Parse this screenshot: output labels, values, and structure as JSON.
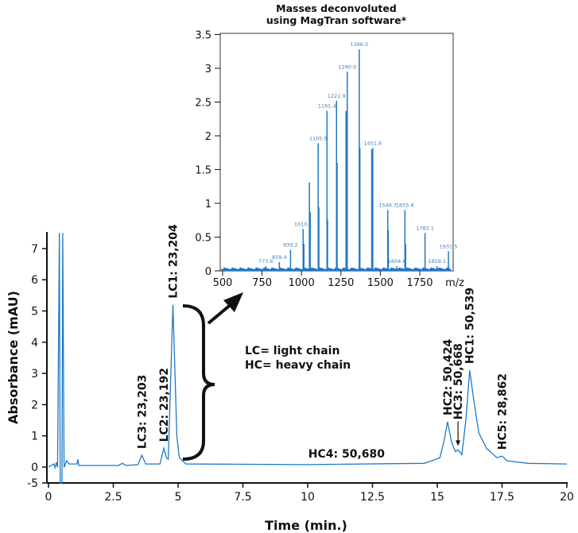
{
  "chart_data": [
    {
      "type": "line",
      "xlabel": "Time (min.)",
      "ylabel": "Absorbance (mAU)",
      "xlim": [
        0,
        20
      ],
      "ylim": [
        -5,
        7.5
      ],
      "x_ticks": [
        "0",
        "2.5",
        "5",
        "7.5",
        "10",
        "12.5",
        "15",
        "17.5",
        "20"
      ],
      "y_ticks": [
        "-5",
        "0",
        "1",
        "2",
        "3",
        "4",
        "5",
        "6",
        "7"
      ],
      "grid": false,
      "color": "#1f78c8",
      "series": [
        {
          "points": [
            [
              0,
              0
            ],
            [
              0.2,
              0.1
            ],
            [
              0.25,
              -0.2
            ],
            [
              0.3,
              0.15
            ],
            [
              0.35,
              -0.1
            ],
            [
              0.42,
              7.6
            ],
            [
              0.45,
              -5
            ],
            [
              0.52,
              -5
            ],
            [
              0.55,
              7.6
            ],
            [
              0.6,
              -0.1
            ],
            [
              0.7,
              0.2
            ],
            [
              0.8,
              0.1
            ],
            [
              1.1,
              0.1
            ],
            [
              1.13,
              0.25
            ],
            [
              1.17,
              0.05
            ],
            [
              2.7,
              0.05
            ],
            [
              2.85,
              0.12
            ],
            [
              3.0,
              0.05
            ],
            [
              3.45,
              0.08
            ],
            [
              3.6,
              0.38
            ],
            [
              3.75,
              0.1
            ],
            [
              4.3,
              0.1
            ],
            [
              4.45,
              0.6
            ],
            [
              4.55,
              0.3
            ],
            [
              4.62,
              0.25
            ],
            [
              4.72,
              3
            ],
            [
              4.8,
              5.2
            ],
            [
              4.88,
              3
            ],
            [
              4.95,
              1
            ],
            [
              5.05,
              0.3
            ],
            [
              5.3,
              0.1
            ],
            [
              10,
              0.08
            ],
            [
              14.5,
              0.12
            ],
            [
              14.95,
              0.25
            ],
            [
              15.1,
              0.3
            ],
            [
              15.25,
              0.8
            ],
            [
              15.4,
              1.45
            ],
            [
              15.55,
              0.8
            ],
            [
              15.7,
              0.5
            ],
            [
              15.8,
              0.55
            ],
            [
              15.95,
              0.4
            ],
            [
              16.1,
              1.5
            ],
            [
              16.25,
              3.1
            ],
            [
              16.4,
              2.2
            ],
            [
              16.6,
              1.1
            ],
            [
              16.9,
              0.6
            ],
            [
              17.3,
              0.3
            ],
            [
              17.5,
              0.35
            ],
            [
              17.7,
              0.2
            ],
            [
              18.5,
              0.12
            ],
            [
              20,
              0.1
            ]
          ]
        }
      ],
      "annotations": [
        {
          "text": "LC3: 23,203",
          "x": 3.6,
          "y": 0.38,
          "rotated": true
        },
        {
          "text": "LC2: 23,192",
          "x": 4.45,
          "y": 0.6,
          "rotated": true
        },
        {
          "text": "LC1: 23,204",
          "x": 4.8,
          "y": 5.2,
          "rotated": true
        },
        {
          "text": "HC4: 50,680",
          "x": 11.5,
          "y": 0.1,
          "rotated": false
        },
        {
          "text": "HC2: 50,424",
          "x": 15.4,
          "y": 1.45,
          "rotated": true
        },
        {
          "text": "HC3: 50,668",
          "x": 15.8,
          "y": 0.55,
          "rotated": true,
          "arrow": true
        },
        {
          "text": "HC1: 50,539",
          "x": 16.25,
          "y": 3.1,
          "rotated": true
        },
        {
          "text": "HC5: 28,862",
          "x": 17.5,
          "y": 0.35,
          "rotated": true
        }
      ],
      "legend_text": [
        "LC= light chain",
        "HC= heavy chain"
      ]
    },
    {
      "type": "bar",
      "title": [
        "Masses deconvoluted",
        "using MagTran software*"
      ],
      "xlabel": "m/z",
      "xlim": [
        500,
        1960
      ],
      "ylim": [
        0,
        3.5
      ],
      "x_ticks": [
        "500",
        "750",
        "1000",
        "1250",
        "1500",
        "1750"
      ],
      "y_ticks": [
        "0",
        "0.5",
        "1",
        "1.5",
        "2",
        "2.5",
        "3",
        "3.5"
      ],
      "color": "#1f78c8",
      "peaks": [
        {
          "mz": 773.6,
          "value": 0.07,
          "label": "773.6"
        },
        {
          "mz": 859.4,
          "value": 0.13,
          "label": "859.4"
        },
        {
          "mz": 930.2,
          "value": 0.31,
          "label": "930.2"
        },
        {
          "mz": 1010.1,
          "value": 0.62,
          "label": "1010.1"
        },
        {
          "mz": 1105.9,
          "value": 1.89,
          "label": "1105.9"
        },
        {
          "mz": 1161.4,
          "value": 2.37,
          "label": "1161.4"
        },
        {
          "mz": 1221.9,
          "value": 2.52,
          "label": "1221.9"
        },
        {
          "mz": 1290.0,
          "value": 2.95,
          "label": "1290.0"
        },
        {
          "mz": 1366.0,
          "value": 3.28,
          "label": "1366.0"
        },
        {
          "mz": 1451.6,
          "value": 1.82,
          "label": "1451.6"
        },
        {
          "mz": 1546.7,
          "value": 0.9,
          "label": "1546.7"
        },
        {
          "mz": 1604.6,
          "value": 0.07,
          "label": "1604.6"
        },
        {
          "mz": 1655.6,
          "value": 0.9,
          "label": "1655.6"
        },
        {
          "mz": 1783.1,
          "value": 0.56,
          "label": "1783.1"
        },
        {
          "mz": 1859.1,
          "value": 0.07,
          "label": "1859.1"
        },
        {
          "mz": 1931.5,
          "value": 0.29,
          "label": "1931.5"
        },
        {
          "mz": 1015,
          "value": 0.4
        },
        {
          "mz": 1050,
          "value": 1.31
        },
        {
          "mz": 1055,
          "value": 0.87
        },
        {
          "mz": 1110,
          "value": 0.94
        },
        {
          "mz": 1165,
          "value": 0.76
        },
        {
          "mz": 1226,
          "value": 1.6
        },
        {
          "mz": 1282,
          "value": 2.37
        },
        {
          "mz": 1370,
          "value": 1.82
        },
        {
          "mz": 1445,
          "value": 1.8
        },
        {
          "mz": 1550,
          "value": 0.6
        },
        {
          "mz": 1660,
          "value": 0.4
        }
      ]
    }
  ]
}
